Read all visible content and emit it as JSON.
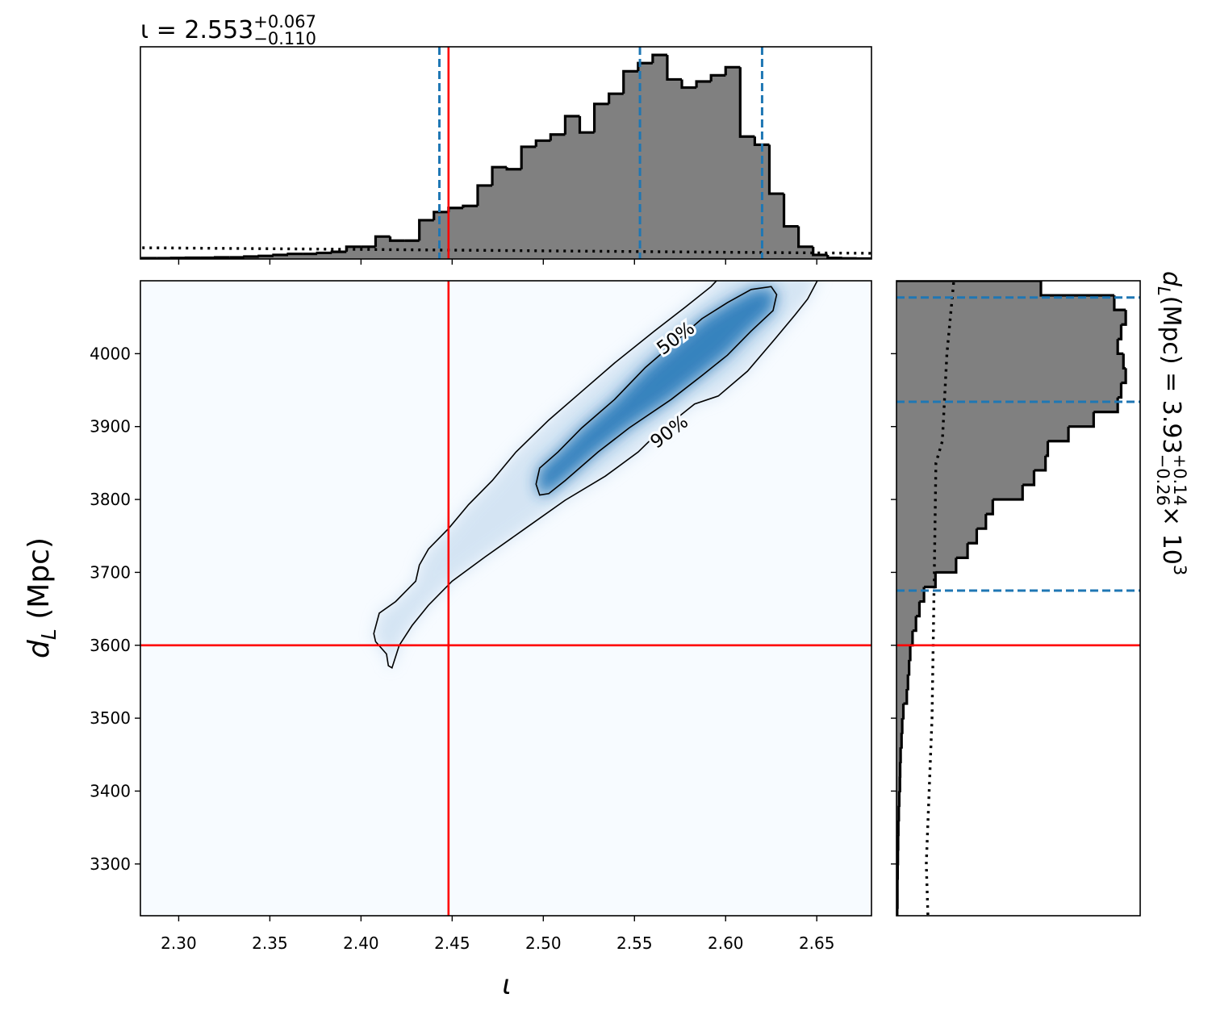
{
  "chart_data": [
    {
      "type": "histogram",
      "title": {
        "text": "ι = 2.553",
        "upper": "+0.067",
        "lower": "−0.110"
      },
      "bins": [
        2.28,
        2.288,
        2.296,
        2.304,
        2.312,
        2.32,
        2.328,
        2.336,
        2.344,
        2.352,
        2.36,
        2.368,
        2.376,
        2.384,
        2.392,
        2.4,
        2.408,
        2.416,
        2.424,
        2.432,
        2.44,
        2.448,
        2.456,
        2.464,
        2.472,
        2.48,
        2.488,
        2.496,
        2.504,
        2.512,
        2.52,
        2.528,
        2.536,
        2.544,
        2.552,
        2.56,
        2.568,
        2.576,
        2.584,
        2.592,
        2.6,
        2.608,
        2.616,
        2.624,
        2.632,
        2.64,
        2.648,
        2.656,
        2.664,
        2.672,
        2.68
      ],
      "values": [
        0.004,
        0.004,
        0.005,
        0.006,
        0.006,
        0.008,
        0.008,
        0.012,
        0.015,
        0.02,
        0.025,
        0.025,
        0.03,
        0.035,
        0.06,
        0.06,
        0.11,
        0.09,
        0.09,
        0.19,
        0.23,
        0.25,
        0.26,
        0.36,
        0.45,
        0.44,
        0.55,
        0.58,
        0.61,
        0.7,
        0.62,
        0.76,
        0.81,
        0.92,
        0.96,
        1.0,
        0.88,
        0.84,
        0.87,
        0.9,
        0.94,
        0.6,
        0.56,
        0.32,
        0.16,
        0.06,
        0.02,
        0.005,
        0.003,
        0.002
      ],
      "color": "#808080",
      "edge_color": "#000000",
      "xlim": [
        2.279,
        2.68
      ],
      "ylim": [
        0,
        1.04
      ],
      "quantiles": [
        2.443,
        2.553,
        2.62
      ],
      "quantile_color": "#1f77b4",
      "prior": {
        "x": [
          2.28,
          2.4,
          2.5,
          2.6,
          2.68
        ],
        "values": [
          0.055,
          0.047,
          0.04,
          0.033,
          0.028
        ]
      }
    },
    {
      "type": "density",
      "x_label": "ι",
      "y_label": {
        "text": "d",
        "sub": "L",
        "tail": " (Mpc)"
      },
      "xlim": [
        2.279,
        2.68
      ],
      "ylim": [
        3229,
        4100
      ],
      "xticks": [
        {
          "value": 2.3,
          "label": "2.30"
        },
        2.35,
        {
          "value": 2.4,
          "label": "2.40"
        },
        2.45,
        {
          "value": 2.5,
          "label": "2.50"
        },
        2.55,
        {
          "value": 2.6,
          "label": "2.60"
        },
        2.65
      ],
      "yticks": [
        3300,
        3400,
        3500,
        3600,
        3700,
        3800,
        3900,
        4000
      ],
      "background_color": "#f7fbff",
      "contours": [
        {
          "label": "90%",
          "fill": "#c6dbef",
          "x": [
            2.407,
            2.41,
            2.419,
            2.43,
            2.432,
            2.437,
            2.448,
            2.459,
            2.472,
            2.485,
            2.503,
            2.521,
            2.539,
            2.561,
            2.578,
            2.592,
            2.598,
            2.652,
            2.645,
            2.638,
            2.627,
            2.612,
            2.596,
            2.583,
            2.561,
            2.552,
            2.534,
            2.512,
            2.49,
            2.468,
            2.45,
            2.437,
            2.428,
            2.421,
            2.417,
            2.415,
            2.414,
            2.408
          ],
          "y": [
            3616,
            3644,
            3660,
            3688,
            3710,
            3732,
            3760,
            3793,
            3826,
            3865,
            3909,
            3948,
            3987,
            4031,
            4064,
            4092,
            4108,
            4108,
            4075,
            4053,
            4020,
            3976,
            3942,
            3931,
            3887,
            3865,
            3832,
            3799,
            3760,
            3721,
            3688,
            3655,
            3627,
            3600,
            3569,
            3572,
            3588,
            3605
          ]
        },
        {
          "label": "50%",
          "fill": "#2f7ebc",
          "x": [
            2.496,
            2.498,
            2.508,
            2.521,
            2.539,
            2.556,
            2.587,
            2.601,
            2.614,
            2.625,
            2.628,
            2.626,
            2.614,
            2.601,
            2.587,
            2.57,
            2.547,
            2.53,
            2.512,
            2.503,
            2.498
          ],
          "y": [
            3821,
            3843,
            3865,
            3898,
            3937,
            3981,
            4048,
            4070,
            4088,
            4092,
            4081,
            4059,
            4031,
            3998,
            3970,
            3937,
            3898,
            3865,
            3826,
            3808,
            3806
          ]
        }
      ],
      "contour_color": "#000000",
      "truth": {
        "x": 2.448,
        "y": 3600
      },
      "truth_color": "#ff0000"
    },
    {
      "type": "histogram",
      "orientation": "horizontal",
      "title": {
        "text": "d",
        "sub": "L",
        "middle": " (Mpc) = 3.93",
        "upper": "+0.14",
        "lower": "−0.26",
        "tail": " × 10",
        "exp": "3"
      },
      "bins": [
        3220,
        3240,
        3260,
        3280,
        3300,
        3320,
        3340,
        3360,
        3380,
        3400,
        3420,
        3440,
        3460,
        3480,
        3500,
        3520,
        3540,
        3560,
        3580,
        3600,
        3620,
        3640,
        3660,
        3680,
        3700,
        3720,
        3740,
        3760,
        3780,
        3800,
        3820,
        3840,
        3860,
        3880,
        3900,
        3920,
        3940,
        3960,
        3980,
        4000,
        4020,
        4040,
        4060,
        4080,
        4100
      ],
      "values": [
        0.003,
        0.004,
        0.004,
        0.005,
        0.006,
        0.007,
        0.008,
        0.01,
        0.012,
        0.015,
        0.016,
        0.018,
        0.022,
        0.025,
        0.03,
        0.045,
        0.05,
        0.055,
        0.06,
        0.07,
        0.085,
        0.1,
        0.12,
        0.17,
        0.26,
        0.31,
        0.35,
        0.39,
        0.42,
        0.55,
        0.6,
        0.65,
        0.66,
        0.75,
        0.86,
        0.965,
        0.98,
        1.0,
        0.99,
        0.965,
        0.98,
        1.0,
        0.95,
        0.63
      ],
      "color": "#808080",
      "edge_color": "#000000",
      "xlim": [
        0,
        1.063
      ],
      "quantiles": [
        3675,
        3934,
        4077
      ],
      "quantile_color": "#1f77b4",
      "prior": {
        "y": [
          3230,
          3300,
          3500,
          3700,
          3850,
          3880,
          4000,
          4100
        ],
        "values": [
          0.137,
          0.13,
          0.155,
          0.165,
          0.172,
          0.2,
          0.22,
          0.25
        ]
      }
    }
  ]
}
